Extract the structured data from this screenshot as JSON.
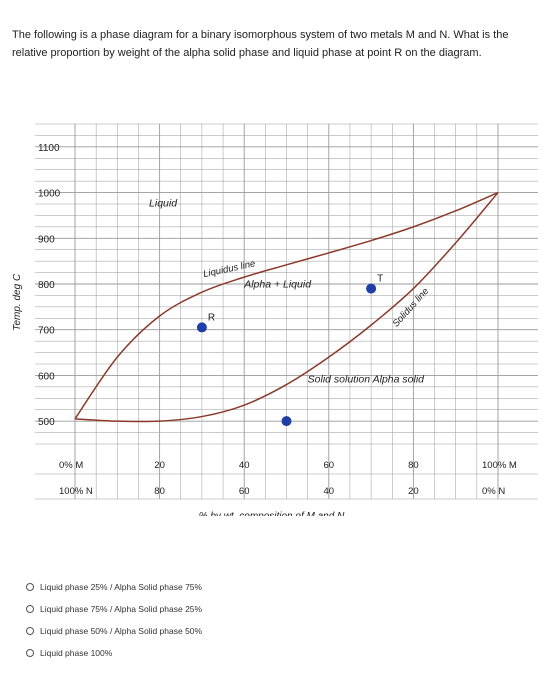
{
  "question": {
    "text": "The following is a phase diagram for a binary isomorphous system of two metals M and N. What is the relative proportion by weight of the alpha solid phase and liquid phase at point R on the diagram."
  },
  "chart_data": {
    "type": "diagram",
    "ylabel": "Temp. deg C",
    "xlabel": "% by wt. composition of M and N",
    "y_ticks": [
      "1100",
      "1000",
      "900",
      "800",
      "700",
      "600",
      "500"
    ],
    "x_ticks_top": [
      "0% M",
      "20",
      "40",
      "60",
      "80",
      "100% M"
    ],
    "x_ticks_bottom": [
      "100% N",
      "80",
      "60",
      "40",
      "20",
      "0% N"
    ],
    "ylim": [
      450,
      1150
    ],
    "xlim": [
      0,
      100
    ],
    "region_labels": {
      "liquid": "Liquid",
      "two_phase": "Alpha + Liquid",
      "solid": "Solid solution  Alpha solid"
    },
    "curve_labels": {
      "liquidus": "Liquidus line",
      "solidus": "Solidus line"
    },
    "endpoints": [
      {
        "x": 0,
        "y": 505
      },
      {
        "x": 100,
        "y": 1000
      }
    ],
    "liquidus": [
      {
        "x": 0,
        "y": 505
      },
      {
        "x": 10,
        "y": 640
      },
      {
        "x": 20,
        "y": 730
      },
      {
        "x": 30,
        "y": 782
      },
      {
        "x": 40,
        "y": 815
      },
      {
        "x": 50,
        "y": 842
      },
      {
        "x": 60,
        "y": 868
      },
      {
        "x": 70,
        "y": 895
      },
      {
        "x": 80,
        "y": 925
      },
      {
        "x": 90,
        "y": 960
      },
      {
        "x": 100,
        "y": 1000
      }
    ],
    "solidus": [
      {
        "x": 0,
        "y": 505
      },
      {
        "x": 10,
        "y": 500
      },
      {
        "x": 20,
        "y": 500
      },
      {
        "x": 30,
        "y": 510
      },
      {
        "x": 40,
        "y": 535
      },
      {
        "x": 50,
        "y": 580
      },
      {
        "x": 60,
        "y": 640
      },
      {
        "x": 70,
        "y": 710
      },
      {
        "x": 80,
        "y": 790
      },
      {
        "x": 90,
        "y": 890
      },
      {
        "x": 100,
        "y": 1000
      }
    ],
    "points": [
      {
        "label": "R",
        "x": 30,
        "y": 705
      },
      {
        "label": "T",
        "x": 70,
        "y": 790
      },
      {
        "label": "",
        "x": 50,
        "y": 500
      }
    ]
  },
  "options": [
    "Liquid phase 25% / Alpha Solid phase 75%",
    "Liquid phase 75% / Alpha Solid phase 25%",
    "Liquid phase 50% / Alpha Solid phase 50%",
    "Liquid phase 100%"
  ],
  "colors": {
    "curve": "#8b3a2a",
    "point": "#1f3ea8",
    "grid": "#9a9a9a",
    "text": "#222222"
  }
}
